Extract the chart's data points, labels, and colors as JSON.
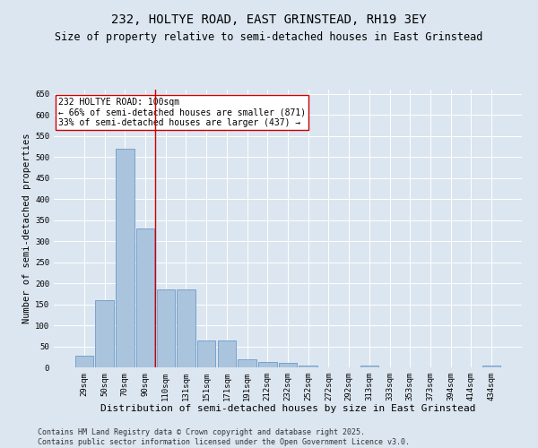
{
  "title": "232, HOLTYE ROAD, EAST GRINSTEAD, RH19 3EY",
  "subtitle": "Size of property relative to semi-detached houses in East Grinstead",
  "xlabel": "Distribution of semi-detached houses by size in East Grinstead",
  "ylabel": "Number of semi-detached properties",
  "categories": [
    "29sqm",
    "50sqm",
    "70sqm",
    "90sqm",
    "110sqm",
    "131sqm",
    "151sqm",
    "171sqm",
    "191sqm",
    "212sqm",
    "232sqm",
    "252sqm",
    "272sqm",
    "292sqm",
    "313sqm",
    "333sqm",
    "353sqm",
    "373sqm",
    "394sqm",
    "414sqm",
    "434sqm"
  ],
  "values": [
    28,
    160,
    520,
    330,
    185,
    185,
    63,
    63,
    20,
    12,
    10,
    4,
    0,
    0,
    4,
    0,
    0,
    0,
    0,
    0,
    4
  ],
  "bar_color": "#aac4de",
  "bar_edge_color": "#5a8fc0",
  "vline_color": "#cc0000",
  "vline_x_index": 3,
  "annotation_text": "232 HOLTYE ROAD: 100sqm\n← 66% of semi-detached houses are smaller (871)\n33% of semi-detached houses are larger (437) →",
  "annotation_box_color": "#ffffff",
  "annotation_box_edge": "#cc0000",
  "background_color": "#dce6f0",
  "plot_bg_color": "#dce6f0",
  "footer_line1": "Contains HM Land Registry data © Crown copyright and database right 2025.",
  "footer_line2": "Contains public sector information licensed under the Open Government Licence v3.0.",
  "ylim": [
    0,
    660
  ],
  "yticks": [
    0,
    50,
    100,
    150,
    200,
    250,
    300,
    350,
    400,
    450,
    500,
    550,
    600,
    650
  ],
  "title_fontsize": 10,
  "subtitle_fontsize": 8.5,
  "xlabel_fontsize": 8,
  "ylabel_fontsize": 7.5,
  "tick_fontsize": 6.5,
  "annotation_fontsize": 7,
  "footer_fontsize": 6
}
